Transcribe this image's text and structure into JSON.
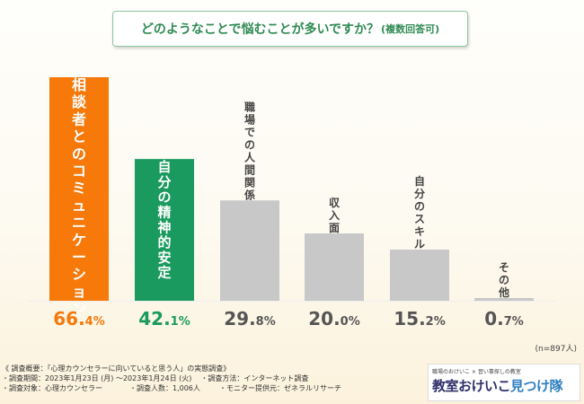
{
  "title": {
    "main": "どのようなことで悩むことが多いですか？",
    "sub": "(複数回答可)"
  },
  "colors": {
    "first": "#f6790a",
    "second": "#1a9a5f",
    "other": "#c8c8c8",
    "title_text": "#2e8a52",
    "title_border": "#8cc79e"
  },
  "chart_data": {
    "type": "bar",
    "categories": [
      "相談者とのコミュニケーション",
      "自分の精神的安定",
      "職場での人間関係",
      "収入面",
      "自分のスキル",
      "その他"
    ],
    "values": [
      66.4,
      42.1,
      29.8,
      20.0,
      15.2,
      0.7
    ],
    "value_labels": [
      {
        "int": "66.",
        "dec": "4%"
      },
      {
        "int": "42.",
        "dec": "1%"
      },
      {
        "int": "29.",
        "dec": "8%"
      },
      {
        "int": "20.",
        "dec": "0%"
      },
      {
        "int": "15.",
        "dec": "2%"
      },
      {
        "int": "0.",
        "dec": "7%"
      }
    ],
    "ylim": [
      0,
      66.4
    ]
  },
  "n_note": "(n=897人)",
  "survey": {
    "heading": "《 調査概要：「心理カウンセラーに向いていると思う人」の実態調査》",
    "period_label": "調査期間：2023年1月23日 (月) 〜2023年1月24日 (火)",
    "method_label": "調査方法：インターネット調査",
    "target_label": "調査対象：心理カウンセラー",
    "count_label": "調査人数：1,006人",
    "provider_label": "モニター提供元：ゼネラルリサーチ"
  },
  "logo": {
    "tagline": "職場のおけいこ × 習い事探しの教室",
    "name_a": "教室おけいこ",
    "name_b": "見つけ隊"
  }
}
